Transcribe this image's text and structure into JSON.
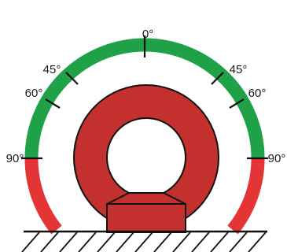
{
  "diagram": {
    "angle_labels": {
      "top": "0°",
      "upper_left": "45°",
      "upper_right": "45°",
      "mid_left": "60°",
      "mid_right": "60°",
      "side_left": "90°",
      "side_right": "90°"
    },
    "colors": {
      "safe_zone": "#1fa247",
      "danger_zone": "#e43436",
      "eyebolt_body": "#c4302d",
      "outline": "#111111",
      "ground_line": "#111111"
    },
    "icon": "lifting-eyebolt-angle-icon"
  }
}
